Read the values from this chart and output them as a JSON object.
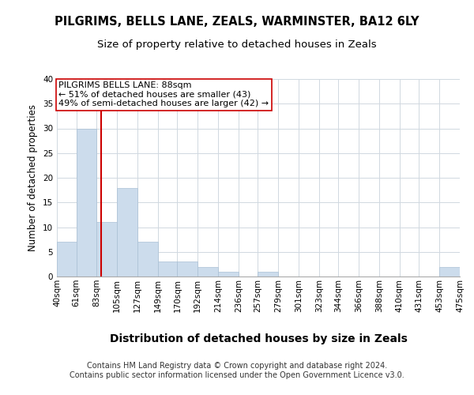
{
  "title": "PILGRIMS, BELLS LANE, ZEALS, WARMINSTER, BA12 6LY",
  "subtitle": "Size of property relative to detached houses in Zeals",
  "xlabel": "Distribution of detached houses by size in Zeals",
  "ylabel": "Number of detached properties",
  "bin_edges": [
    40,
    61,
    83,
    105,
    127,
    149,
    170,
    192,
    214,
    236,
    257,
    279,
    301,
    323,
    344,
    366,
    388,
    410,
    431,
    453,
    475
  ],
  "bin_labels": [
    "40sqm",
    "61sqm",
    "83sqm",
    "105sqm",
    "127sqm",
    "149sqm",
    "170sqm",
    "192sqm",
    "214sqm",
    "236sqm",
    "257sqm",
    "279sqm",
    "301sqm",
    "323sqm",
    "344sqm",
    "366sqm",
    "388sqm",
    "410sqm",
    "431sqm",
    "453sqm",
    "475sqm"
  ],
  "counts": [
    7,
    30,
    11,
    18,
    7,
    3,
    3,
    2,
    1,
    0,
    1,
    0,
    0,
    0,
    0,
    0,
    0,
    0,
    0,
    2
  ],
  "bar_color": "#ccdcec",
  "bar_edge_color": "#aac0d4",
  "property_size": 88,
  "vline_color": "#cc0000",
  "annotation_title": "PILGRIMS BELLS LANE: 88sqm",
  "annotation_line1": "← 51% of detached houses are smaller (43)",
  "annotation_line2": "49% of semi-detached houses are larger (42) →",
  "annotation_box_color": "#ffffff",
  "annotation_box_edgecolor": "#cc0000",
  "ylim": [
    0,
    40
  ],
  "yticks": [
    0,
    5,
    10,
    15,
    20,
    25,
    30,
    35,
    40
  ],
  "footer_line1": "Contains HM Land Registry data © Crown copyright and database right 2024.",
  "footer_line2": "Contains public sector information licensed under the Open Government Licence v3.0.",
  "background_color": "#ffffff",
  "grid_color": "#d0d8e0",
  "title_fontsize": 10.5,
  "subtitle_fontsize": 9.5,
  "xlabel_fontsize": 10,
  "ylabel_fontsize": 8.5,
  "tick_fontsize": 7.5,
  "annotation_fontsize": 8,
  "footer_fontsize": 7
}
